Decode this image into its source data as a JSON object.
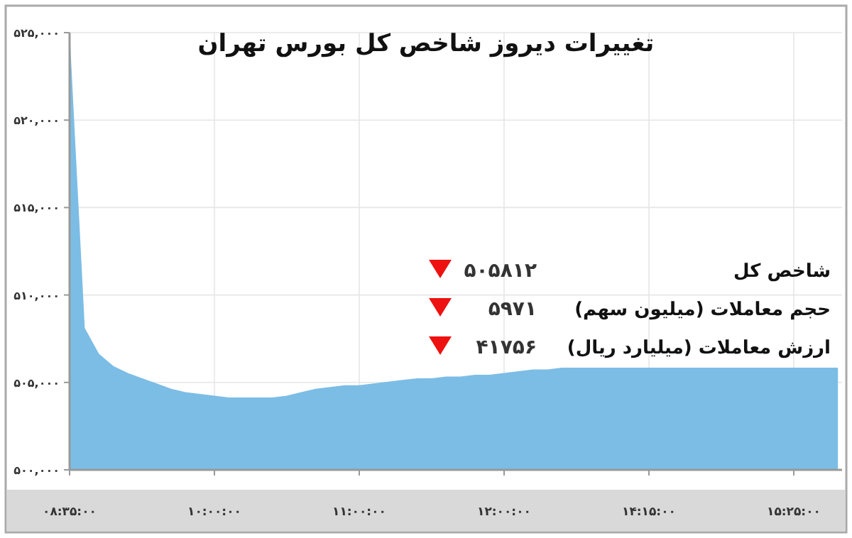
{
  "chart_data": {
    "type": "area",
    "title": "تغییرات دیروز شاخص کل بورس تهران",
    "categories": [
      "۰۸:۳۵:۰۰",
      null,
      null,
      null,
      null,
      null,
      null,
      null,
      null,
      null,
      "۱۰:۰۰:۰۰",
      null,
      null,
      null,
      null,
      null,
      null,
      null,
      null,
      null,
      "۱۱:۰۰:۰۰",
      null,
      null,
      null,
      null,
      null,
      null,
      null,
      null,
      null,
      "۱۲:۰۰:۰۰",
      null,
      null,
      null,
      null,
      null,
      null,
      null,
      null,
      null,
      "۱۴:۱۵:۰۰",
      null,
      null,
      null,
      null,
      null,
      null,
      null,
      null,
      null,
      "۱۵:۲۵:۰۰",
      null,
      null,
      null
    ],
    "values": [
      524300,
      508100,
      506600,
      505900,
      505500,
      505200,
      504900,
      504600,
      504400,
      504300,
      504200,
      504100,
      504100,
      504100,
      504100,
      504200,
      504400,
      504600,
      504700,
      504800,
      504800,
      504900,
      505000,
      505100,
      505200,
      505200,
      505300,
      505300,
      505400,
      505400,
      505500,
      505600,
      505700,
      505700,
      505800,
      505800,
      505800,
      505800,
      505800,
      505800,
      505800,
      505800,
      505800,
      505800,
      505800,
      505800,
      505800,
      505800,
      505800,
      505800,
      505800,
      505800,
      505800,
      505800
    ],
    "color": "#7cbde6",
    "ylim": [
      500000,
      525000
    ],
    "yticks": [
      {
        "value": 500000,
        "label": "۵۰۰,۰۰۰"
      },
      {
        "value": 505000,
        "label": "۵۰۵,۰۰۰"
      },
      {
        "value": 510000,
        "label": "۵۱۰,۰۰۰"
      },
      {
        "value": 515000,
        "label": "۵۱۵,۰۰۰"
      },
      {
        "value": 520000,
        "label": "۵۲۰,۰۰۰"
      },
      {
        "value": 525000,
        "label": "۵۲۵,۰۰۰"
      }
    ],
    "grid": true,
    "annotations": [
      "شاخص کل",
      "۵۰۵۸۱۲",
      "حجم معاملات (میلیون سهم)",
      "۵۹۷۱",
      "ارزش معاملات (میلیارد ریال)",
      "۴۱۷۵۶"
    ]
  }
}
